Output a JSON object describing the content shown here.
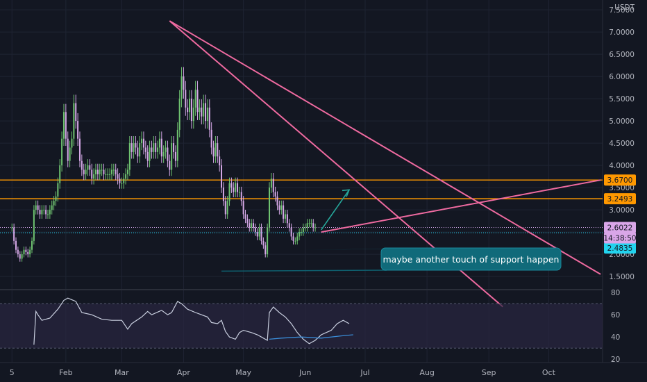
{
  "chart_data": {
    "type": "candlestick",
    "currency": "USDT",
    "price_axis": {
      "ticks": [
        "7.5000",
        "7.0000",
        "6.5000",
        "6.0000",
        "5.5000",
        "5.0000",
        "4.5000",
        "4.0000",
        "3.5000",
        "3.0000",
        "2.5000",
        "2.0000",
        "1.5000"
      ],
      "range": [
        1.22,
        7.72
      ]
    },
    "x_axis": {
      "ticks": [
        {
          "label": "5",
          "x": 5
        },
        {
          "label": "Feb",
          "x": 32
        },
        {
          "label": "Mar",
          "x": 60
        },
        {
          "label": "Apr",
          "x": 91
        },
        {
          "label": "May",
          "x": 121
        },
        {
          "label": "Jun",
          "x": 152
        },
        {
          "label": "Jul",
          "x": 182
        },
        {
          "label": "Aug",
          "x": 213
        },
        {
          "label": "Sep",
          "x": 244
        },
        {
          "label": "Oct",
          "x": 274
        }
      ],
      "range": [
        -1,
        301
      ]
    },
    "candles_close": [
      [
        5,
        2.6
      ],
      [
        6,
        2.3
      ],
      [
        7,
        2.1
      ],
      [
        8,
        2.0
      ],
      [
        9,
        1.9
      ],
      [
        10,
        2.0
      ],
      [
        11,
        2.1
      ],
      [
        12,
        2.05
      ],
      [
        13,
        2.0
      ],
      [
        14,
        2.1
      ],
      [
        15,
        2.3
      ],
      [
        16,
        3.0
      ],
      [
        17,
        3.1
      ],
      [
        18,
        3.0
      ],
      [
        19,
        2.9
      ],
      [
        20,
        3.0
      ],
      [
        21,
        3.0
      ],
      [
        22,
        2.9
      ],
      [
        23,
        2.9
      ],
      [
        24,
        3.0
      ],
      [
        25,
        3.1
      ],
      [
        26,
        3.2
      ],
      [
        27,
        3.3
      ],
      [
        28,
        3.6
      ],
      [
        29,
        4.0
      ],
      [
        30,
        4.6
      ],
      [
        31,
        5.2
      ],
      [
        32,
        4.6
      ],
      [
        33,
        4.1
      ],
      [
        34,
        4.4
      ],
      [
        35,
        4.6
      ],
      [
        36,
        5.4
      ],
      [
        37,
        5.0
      ],
      [
        38,
        4.6
      ],
      [
        39,
        4.1
      ],
      [
        40,
        3.9
      ],
      [
        41,
        3.8
      ],
      [
        42,
        3.9
      ],
      [
        43,
        4.0
      ],
      [
        44,
        3.9
      ],
      [
        45,
        3.7
      ],
      [
        46,
        3.8
      ],
      [
        47,
        3.9
      ],
      [
        48,
        3.8
      ],
      [
        49,
        3.9
      ],
      [
        50,
        3.9
      ],
      [
        51,
        3.8
      ],
      [
        52,
        3.8
      ],
      [
        53,
        3.8
      ],
      [
        54,
        3.8
      ],
      [
        55,
        3.9
      ],
      [
        56,
        3.9
      ],
      [
        57,
        3.8
      ],
      [
        58,
        3.7
      ],
      [
        59,
        3.6
      ],
      [
        60,
        3.6
      ],
      [
        61,
        3.7
      ],
      [
        62,
        3.8
      ],
      [
        63,
        3.9
      ],
      [
        64,
        4.5
      ],
      [
        65,
        4.3
      ],
      [
        66,
        4.5
      ],
      [
        67,
        4.4
      ],
      [
        68,
        4.2
      ],
      [
        69,
        4.5
      ],
      [
        70,
        4.6
      ],
      [
        71,
        4.4
      ],
      [
        72,
        4.3
      ],
      [
        73,
        4.1
      ],
      [
        74,
        4.4
      ],
      [
        75,
        4.3
      ],
      [
        76,
        4.5
      ],
      [
        77,
        4.3
      ],
      [
        78,
        4.4
      ],
      [
        79,
        4.6
      ],
      [
        80,
        4.2
      ],
      [
        81,
        4.3
      ],
      [
        82,
        4.4
      ],
      [
        83,
        4.1
      ],
      [
        84,
        3.9
      ],
      [
        85,
        4.5
      ],
      [
        86,
        4.3
      ],
      [
        87,
        4.1
      ],
      [
        88,
        4.8
      ],
      [
        89,
        5.5
      ],
      [
        90,
        6.0
      ],
      [
        91,
        5.7
      ],
      [
        92,
        5.3
      ],
      [
        93,
        5.2
      ],
      [
        94,
        5.5
      ],
      [
        95,
        5.0
      ],
      [
        96,
        5.3
      ],
      [
        97,
        5.7
      ],
      [
        98,
        5.2
      ],
      [
        99,
        5.3
      ],
      [
        100,
        5.1
      ],
      [
        101,
        5.4
      ],
      [
        102,
        5.0
      ],
      [
        103,
        5.3
      ],
      [
        104,
        4.8
      ],
      [
        105,
        4.4
      ],
      [
        106,
        4.2
      ],
      [
        107,
        4.5
      ],
      [
        108,
        4.2
      ],
      [
        109,
        4.0
      ],
      [
        110,
        3.5
      ],
      [
        111,
        3.2
      ],
      [
        112,
        2.9
      ],
      [
        113,
        3.2
      ],
      [
        114,
        3.6
      ],
      [
        115,
        3.5
      ],
      [
        116,
        3.4
      ],
      [
        117,
        3.6
      ],
      [
        118,
        3.4
      ],
      [
        119,
        3.4
      ],
      [
        120,
        3.2
      ],
      [
        121,
        2.9
      ],
      [
        122,
        2.8
      ],
      [
        123,
        2.7
      ],
      [
        124,
        2.6
      ],
      [
        125,
        2.7
      ],
      [
        126,
        2.6
      ],
      [
        127,
        2.5
      ],
      [
        128,
        2.4
      ],
      [
        129,
        2.6
      ],
      [
        130,
        2.3
      ],
      [
        131,
        2.2
      ],
      [
        132,
        2.0
      ],
      [
        133,
        2.6
      ],
      [
        134,
        3.5
      ],
      [
        135,
        3.7
      ],
      [
        136,
        3.4
      ],
      [
        137,
        3.3
      ],
      [
        138,
        3.1
      ],
      [
        139,
        3.0
      ],
      [
        140,
        3.1
      ],
      [
        141,
        2.8
      ],
      [
        142,
        2.9
      ],
      [
        143,
        2.7
      ],
      [
        144,
        2.6
      ],
      [
        145,
        2.4
      ],
      [
        146,
        2.3
      ],
      [
        147,
        2.3
      ],
      [
        148,
        2.4
      ],
      [
        149,
        2.5
      ],
      [
        150,
        2.5
      ],
      [
        151,
        2.6
      ],
      [
        152,
        2.6
      ],
      [
        153,
        2.7
      ],
      [
        154,
        2.7
      ],
      [
        155,
        2.7
      ],
      [
        156,
        2.6
      ],
      [
        157,
        2.6
      ]
    ],
    "horizontal_levels": [
      {
        "value": 3.67,
        "label": "3.6700",
        "color": "#ff9800"
      },
      {
        "value": 3.2493,
        "label": "3.2493",
        "color": "#ff9800"
      },
      {
        "value": 2.6022,
        "label": "2.6022",
        "color": "#cfa4e6"
      },
      {
        "value": 2.4835,
        "label": "2.4835",
        "color": "#22d3ee"
      }
    ],
    "countdown_label": "14:38:50",
    "trend_lines": [
      {
        "from": [
          84,
          7.25
        ],
        "to": [
          300,
          1.55
        ],
        "color": "#ef6aa0"
      },
      {
        "from": [
          84,
          7.25
        ],
        "to": [
          251,
          0.82
        ],
        "color": "#ef6aa0"
      },
      {
        "from": [
          160,
          2.5
        ],
        "to": [
          300,
          3.67
        ],
        "color": "#ef6aa0"
      }
    ],
    "projection_arrow": {
      "from": [
        160,
        2.55
      ],
      "to": [
        174,
        3.45
      ],
      "color": "#26a69a"
    },
    "annotation": {
      "text": "maybe another touch of support happen",
      "pointer_from": [
        110,
        1.62
      ],
      "pointer_to": [
        150,
        2.1
      ]
    },
    "rsi": {
      "ticks": [
        "80",
        "60",
        "40",
        "20"
      ],
      "range": [
        17,
        82
      ],
      "band": [
        30,
        70
      ],
      "values": [
        [
          16,
          33
        ],
        [
          17,
          63
        ],
        [
          18,
          60
        ],
        [
          20,
          55
        ],
        [
          24,
          57
        ],
        [
          28,
          65
        ],
        [
          31,
          73
        ],
        [
          33,
          75
        ],
        [
          37,
          72
        ],
        [
          40,
          62
        ],
        [
          45,
          60
        ],
        [
          50,
          56
        ],
        [
          55,
          55
        ],
        [
          60,
          55
        ],
        [
          63,
          47
        ],
        [
          65,
          52
        ],
        [
          70,
          58
        ],
        [
          73,
          63
        ],
        [
          75,
          60
        ],
        [
          80,
          64
        ],
        [
          83,
          60
        ],
        [
          85,
          62
        ],
        [
          88,
          72
        ],
        [
          90,
          70
        ],
        [
          93,
          65
        ],
        [
          97,
          62
        ],
        [
          100,
          60
        ],
        [
          103,
          58
        ],
        [
          105,
          53
        ],
        [
          108,
          52
        ],
        [
          110,
          55
        ],
        [
          112,
          45
        ],
        [
          114,
          40
        ],
        [
          117,
          38
        ],
        [
          119,
          44
        ],
        [
          121,
          46
        ],
        [
          125,
          44
        ],
        [
          128,
          42
        ],
        [
          130,
          40
        ],
        [
          133,
          37
        ],
        [
          134,
          62
        ],
        [
          136,
          67
        ],
        [
          139,
          62
        ],
        [
          142,
          58
        ],
        [
          145,
          52
        ],
        [
          148,
          44
        ],
        [
          151,
          38
        ],
        [
          154,
          34
        ],
        [
          157,
          37
        ],
        [
          160,
          42
        ],
        [
          165,
          46
        ],
        [
          168,
          52
        ],
        [
          171,
          55
        ],
        [
          174,
          52
        ]
      ],
      "ma": [
        [
          134,
          38
        ],
        [
          140,
          39
        ],
        [
          150,
          40
        ],
        [
          160,
          39
        ],
        [
          170,
          41
        ],
        [
          176,
          42
        ]
      ]
    }
  }
}
